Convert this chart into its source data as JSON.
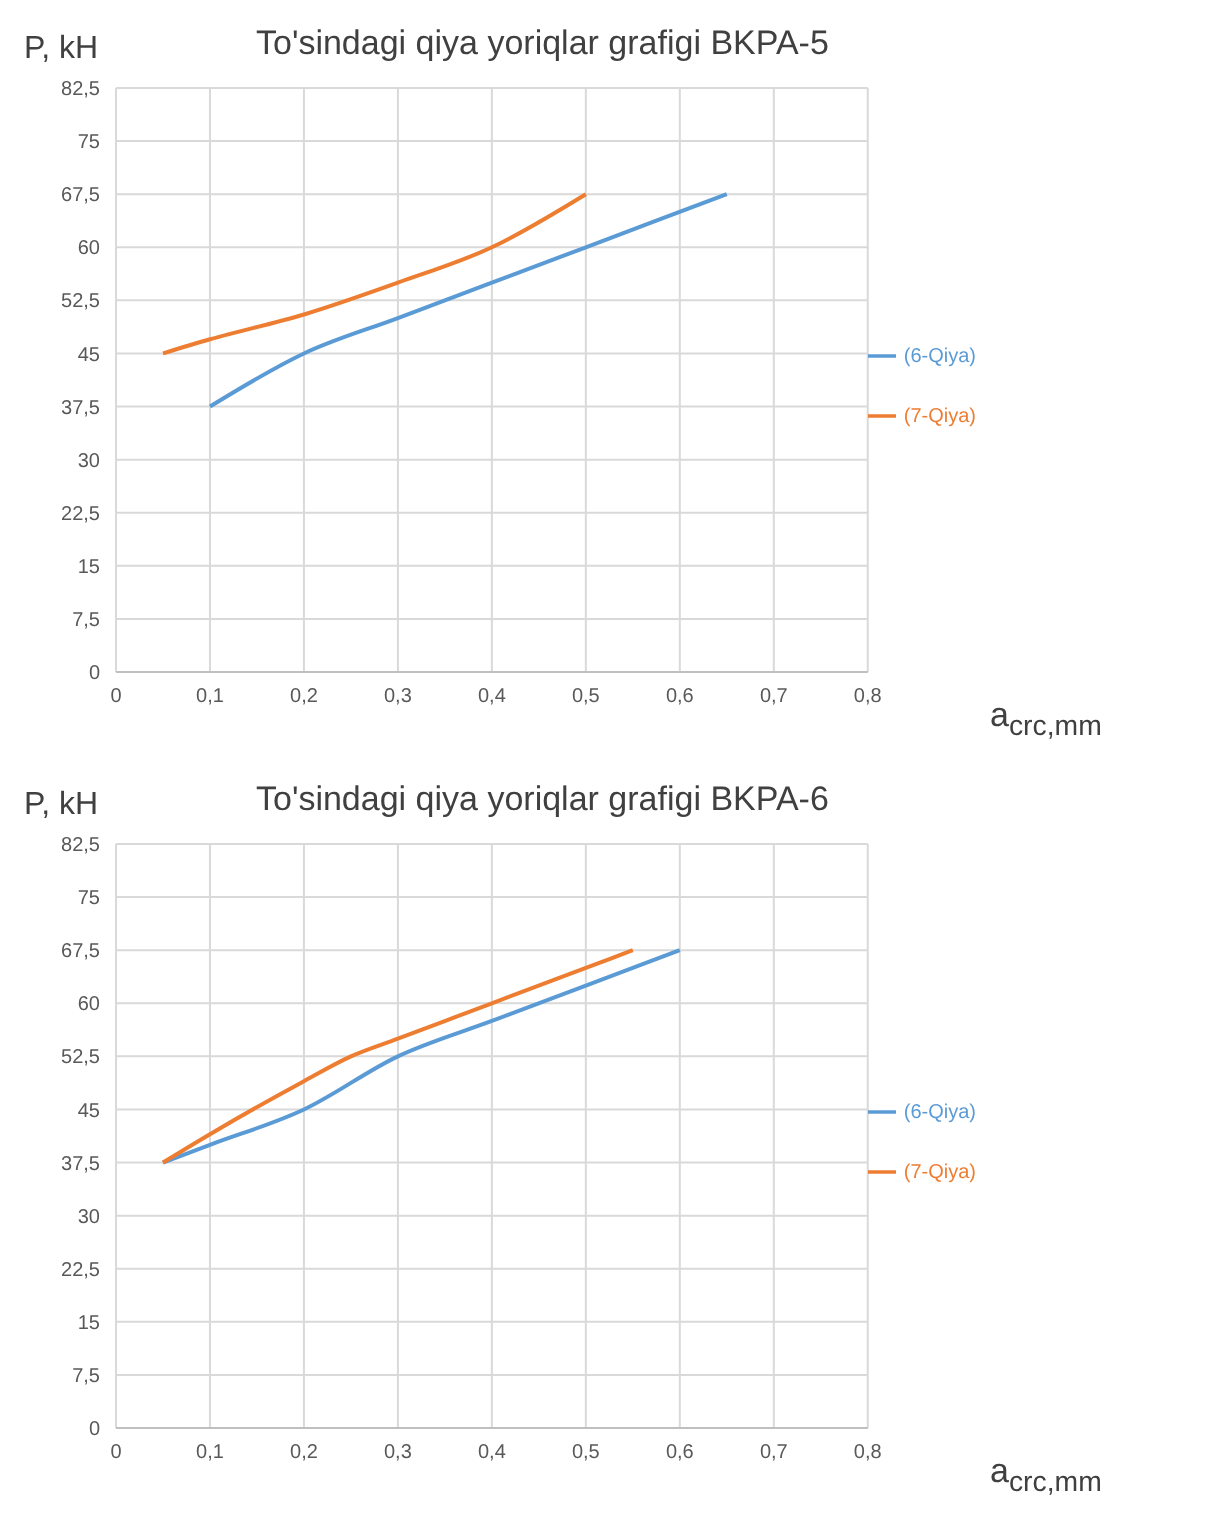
{
  "chart_data": [
    {
      "type": "line",
      "title": "To'sindagi qiya yoriqlar grafigi BKPA-5",
      "xlabel": "a$_{crc,mm}$",
      "ylabel": "P, kH",
      "series": [
        {
          "name": "(6-Qiya)",
          "color": "#5b9bd5",
          "x": [
            0.1,
            0.2,
            0.3,
            0.4,
            0.5,
            0.65
          ],
          "values": [
            37.5,
            45,
            50,
            55,
            60,
            67.5
          ]
        },
        {
          "name": "(7-Qiya)",
          "color": "#ed7d31",
          "x": [
            0.05,
            0.1,
            0.2,
            0.3,
            0.4,
            0.5
          ],
          "values": [
            45,
            47,
            50.5,
            55,
            60,
            67.5
          ]
        }
      ],
      "xlim": [
        0,
        0.8
      ],
      "xticks": [
        {
          "value": 0,
          "label": "0"
        },
        {
          "value": 0.1,
          "label": "0,1"
        },
        {
          "value": 0.2,
          "label": "0,2"
        },
        {
          "value": 0.3,
          "label": "0,3"
        },
        {
          "value": 0.4,
          "label": "0,4"
        },
        {
          "value": 0.5,
          "label": "0,5"
        },
        {
          "value": 0.6,
          "label": "0,6"
        },
        {
          "value": 0.7,
          "label": "0,7"
        },
        {
          "value": 0.8,
          "label": "0,8"
        }
      ],
      "ylim": [
        0,
        82.5
      ],
      "yticks": [
        0,
        {
          "value": 7.5,
          "label": "7,5"
        },
        15,
        {
          "value": 22.5,
          "label": "22,5"
        },
        30,
        {
          "value": 37.5,
          "label": "37,5"
        },
        45,
        {
          "value": 52.5,
          "label": "52,5"
        },
        60,
        {
          "value": 67.5,
          "label": "67,5"
        },
        75,
        {
          "value": 82.5,
          "label": "82,5"
        }
      ],
      "grid": true,
      "legend": "right",
      "marker": "none",
      "line_style": "solid"
    },
    {
      "type": "line",
      "title": "To'sindagi qiya yoriqlar grafigi BKPA-6",
      "xlabel": "a$_{crc,mm}$",
      "ylabel": "P, kH",
      "series": [
        {
          "name": "(6-Qiya)",
          "color": "#5b9bd5",
          "x": [
            0.05,
            0.1,
            0.2,
            0.3,
            0.4,
            0.5,
            0.6
          ],
          "values": [
            37.5,
            40,
            45,
            52.5,
            57.5,
            62.5,
            67.5
          ]
        },
        {
          "name": "(7-Qiya)",
          "color": "#ed7d31",
          "x": [
            0.05,
            0.1,
            0.2,
            0.25,
            0.3,
            0.4,
            0.5,
            0.55
          ],
          "values": [
            37.5,
            41.5,
            49,
            52.5,
            55,
            60,
            65,
            67.5
          ]
        }
      ],
      "xlim": [
        0,
        0.8
      ],
      "xticks": [
        {
          "value": 0,
          "label": "0"
        },
        {
          "value": 0.1,
          "label": "0,1"
        },
        {
          "value": 0.2,
          "label": "0,2"
        },
        {
          "value": 0.3,
          "label": "0,3"
        },
        {
          "value": 0.4,
          "label": "0,4"
        },
        {
          "value": 0.5,
          "label": "0,5"
        },
        {
          "value": 0.6,
          "label": "0,6"
        },
        {
          "value": 0.7,
          "label": "0,7"
        },
        {
          "value": 0.8,
          "label": "0,8"
        }
      ],
      "ylim": [
        0,
        82.5
      ],
      "yticks": [
        0,
        {
          "value": 7.5,
          "label": "7,5"
        },
        15,
        {
          "value": 22.5,
          "label": "22,5"
        },
        30,
        {
          "value": 37.5,
          "label": "37,5"
        },
        45,
        {
          "value": 52.5,
          "label": "52,5"
        },
        60,
        {
          "value": 67.5,
          "label": "67,5"
        },
        75,
        {
          "value": 82.5,
          "label": "82,5"
        }
      ],
      "grid": true,
      "legend": "right",
      "marker": "none",
      "line_style": "solid"
    }
  ]
}
